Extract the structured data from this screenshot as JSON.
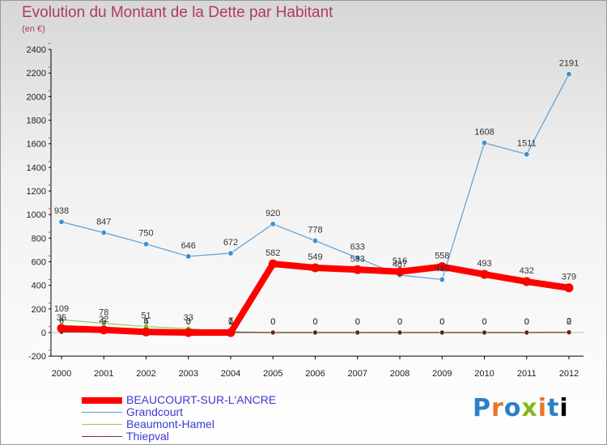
{
  "chart_data": {
    "type": "line",
    "title": "Evolution du Montant de la Dette par Habitant",
    "subtitle": "(en €)",
    "xlabel": "",
    "ylabel": "",
    "ylim": [
      -200,
      2400
    ],
    "yticks": [
      -200,
      0,
      200,
      400,
      600,
      800,
      1000,
      1200,
      1400,
      1600,
      1800,
      2000,
      2200,
      2400
    ],
    "x": [
      "2000",
      "2001",
      "2002",
      "2003",
      "2004",
      "2005",
      "2006",
      "2007",
      "2008",
      "2009",
      "2010",
      "2011",
      "2012"
    ],
    "series": [
      {
        "name": "BEAUCOURT-SUR-L'ANCRE",
        "color": "#ff0000",
        "values": [
          35,
          22,
          5,
          0,
          0,
          582,
          549,
          533,
          516,
          558,
          493,
          432,
          379
        ],
        "labels": [
          "35",
          "22",
          "5",
          "0",
          "0",
          "582",
          "549",
          "533",
          "516",
          "558",
          "493",
          "432",
          "379"
        ]
      },
      {
        "name": "Grandcourt",
        "color": "#5a9fd4",
        "values": [
          938,
          847,
          750,
          646,
          672,
          920,
          778,
          633,
          487,
          449,
          1608,
          1511,
          2191
        ],
        "labels": [
          "938",
          "847",
          "750",
          "646",
          "672",
          "920",
          "778",
          "633",
          "487",
          "449",
          "1608",
          "1511",
          "2191"
        ]
      },
      {
        "name": "Beaumont-Hamel",
        "color": "#90d050",
        "values": [
          109,
          78,
          51,
          33,
          7,
          0,
          0,
          0,
          0,
          0,
          0,
          0,
          0
        ],
        "labels": [
          "109",
          "78",
          "51",
          "33",
          "7",
          "0",
          "0",
          "0",
          "0",
          "0",
          "0",
          "0",
          "0"
        ]
      },
      {
        "name": "Thiepval",
        "color": "#7a3030",
        "values": [
          6,
          5,
          4,
          3,
          1,
          0,
          0,
          0,
          0,
          0,
          0,
          0,
          2
        ],
        "labels": [
          "6",
          "5",
          "4",
          "3",
          "1",
          "0",
          "0",
          "0",
          "0",
          "0",
          "0",
          "0",
          "2"
        ]
      }
    ]
  },
  "logo": {
    "chars": [
      "P",
      "r",
      "o",
      "x",
      "i",
      "t",
      "i"
    ]
  }
}
